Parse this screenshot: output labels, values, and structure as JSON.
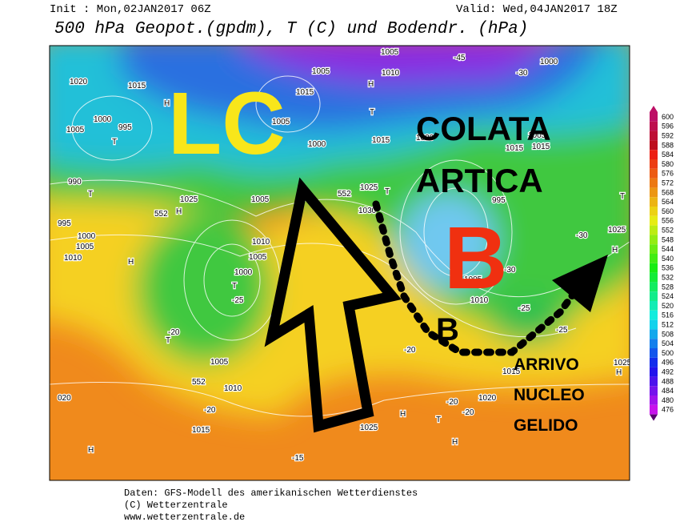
{
  "header": {
    "init": "Init : Mon,02JAN2017 06Z",
    "valid": "Valid: Wed,04JAN2017 18Z",
    "title": "500 hPa Geopot.(gpdm), T (C) und Bodendr. (hPa)"
  },
  "annotations": {
    "lc": "LC",
    "colata": "COLATA",
    "artica": "ARTICA",
    "b_big": "B",
    "b_small": "B",
    "arrivo": "ARRIVO",
    "nucleo": "NUCLEO",
    "gelido": "GELIDO"
  },
  "map_labels": [
    "1015",
    "1020",
    "1005",
    "1000",
    "995",
    "T",
    "H",
    "990",
    "T",
    "995",
    "1000",
    "1005",
    "1010",
    "552",
    "H",
    "1025",
    "H",
    "1010",
    "1005",
    "1000",
    "T",
    "-25",
    "-20",
    "T",
    "1005",
    "552",
    "1010",
    "-20",
    "1015",
    "020",
    "H",
    "-15",
    "H",
    "1025",
    "T",
    "H",
    "1020",
    "-20",
    "-20",
    "1015",
    "-25",
    "1025",
    "H",
    "1005",
    "1015",
    "1005",
    "1000",
    "1015",
    "H",
    "T",
    "1005",
    "1010",
    "1020",
    "1015",
    "1015",
    "1005",
    "1000",
    "-45",
    "-30",
    "1025",
    "T",
    "-30",
    "552",
    "1025",
    "1030",
    "T",
    "995",
    "1005",
    "1010",
    "-25",
    "-30",
    "H",
    "-20",
    "1005"
  ],
  "color_scale": {
    "labels": [
      600,
      596,
      592,
      588,
      584,
      580,
      576,
      572,
      568,
      564,
      560,
      556,
      552,
      548,
      544,
      540,
      536,
      532,
      528,
      524,
      520,
      516,
      512,
      508,
      504,
      500,
      496,
      492,
      488,
      484,
      480,
      476
    ]
  },
  "footer": {
    "line1": "Daten: GFS-Modell des amerikanischen Wetterdienstes",
    "line2": "(C) Wetterzentrale",
    "line3": "www.wetterzentrale.de"
  }
}
